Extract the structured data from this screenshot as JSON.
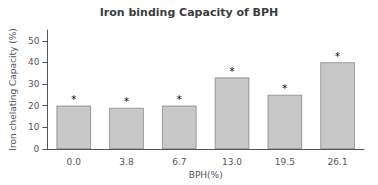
{
  "chart_data": {
    "type": "bar",
    "title": "Iron binding Capacity of BPH",
    "x_label": "BPH(%)",
    "y_label": "Iron chelating Capacity (%)",
    "categories": [
      "0.0",
      "3.8",
      "6.7",
      "13.0",
      "19.5",
      "26.1"
    ],
    "values": [
      20,
      19,
      20,
      33,
      25,
      40
    ],
    "color": "#c8c8c8",
    "ylim": [
      0,
      55
    ],
    "yticks": [
      0,
      10,
      20,
      30,
      40,
      50
    ],
    "grid": false,
    "annotations": [
      {
        "text": "*",
        "x": "0.0"
      },
      {
        "text": "*",
        "x": "3.8"
      },
      {
        "text": "*",
        "x": "6.7"
      },
      {
        "text": "*",
        "x": "13.0"
      },
      {
        "text": "*",
        "x": "19.5"
      },
      {
        "text": "*",
        "x": "26.1"
      }
    ]
  }
}
